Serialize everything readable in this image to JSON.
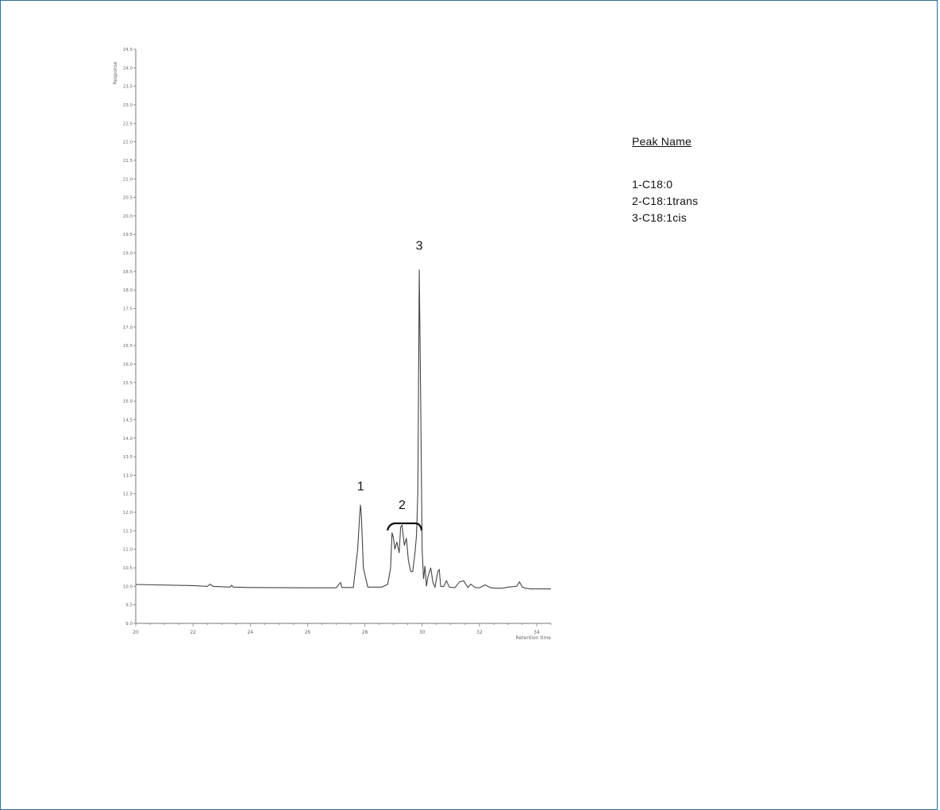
{
  "chart_data": {
    "type": "line",
    "title": "",
    "xlabel": "Retention time",
    "ylabel": "Response",
    "xlim": [
      20,
      34.5
    ],
    "ylim": [
      9.0,
      24.5
    ],
    "x_ticks": [
      "20",
      "22",
      "24",
      "26",
      "28",
      "30",
      "32",
      "34"
    ],
    "y_ticks": [
      "9.0",
      "9.5",
      "10.0",
      "10.5",
      "11.0",
      "11.5",
      "12.0",
      "12.5",
      "13.0",
      "13.5",
      "14.0",
      "14.5",
      "15.0",
      "15.5",
      "16.0",
      "16.5",
      "17.0",
      "17.5",
      "18.0",
      "18.5",
      "19.0",
      "19.5",
      "20.0",
      "20.5",
      "21.0",
      "21.5",
      "22.0",
      "22.5",
      "23.0",
      "23.5",
      "24.0",
      "24.5"
    ],
    "grid": false,
    "peak_labels": [
      {
        "label": "1",
        "x": 27.85,
        "y": 12.2
      },
      {
        "label": "2",
        "x": 29.3,
        "y": 11.7
      },
      {
        "label": "3",
        "x": 29.9,
        "y": 18.7
      }
    ],
    "series": [
      {
        "x": [
          20,
          22,
          22.5,
          22.6,
          22.7,
          23,
          23.3,
          23.35,
          23.4,
          24,
          26,
          27.0,
          27.1,
          27.15,
          27.2,
          27.6,
          27.75,
          27.82,
          27.85,
          27.88,
          27.95,
          28.1,
          28.6,
          28.8,
          28.9,
          28.95,
          29.0,
          29.05,
          29.12,
          29.2,
          29.25,
          29.3,
          29.38,
          29.45,
          29.52,
          29.6,
          29.67,
          29.75,
          29.8,
          29.85,
          29.9,
          29.95,
          30.0,
          30.05,
          30.1,
          30.15,
          30.2,
          30.3,
          30.38,
          30.45,
          30.55,
          30.6,
          30.65,
          30.75,
          30.85,
          30.95,
          31.05,
          31.15,
          31.3,
          31.45,
          31.6,
          31.7,
          31.85,
          32.0,
          32.2,
          32.4,
          32.6,
          32.7,
          32.8,
          33.0,
          33.3,
          33.4,
          33.5,
          33.6,
          33.8,
          34.5
        ],
        "values": [
          10.05,
          10.02,
          10.0,
          10.06,
          10.0,
          9.99,
          9.98,
          10.03,
          9.98,
          9.97,
          9.96,
          9.96,
          10.06,
          10.1,
          9.97,
          9.97,
          11.0,
          11.95,
          12.2,
          11.9,
          10.5,
          9.98,
          9.98,
          10.06,
          10.5,
          11.45,
          11.3,
          11.0,
          11.2,
          10.9,
          11.6,
          11.65,
          11.1,
          11.3,
          10.7,
          10.4,
          10.4,
          10.9,
          11.35,
          12.5,
          18.55,
          15.0,
          11.0,
          10.2,
          10.55,
          10.0,
          10.25,
          10.5,
          10.1,
          9.98,
          10.4,
          10.45,
          10.0,
          9.99,
          10.15,
          9.98,
          9.97,
          9.97,
          10.12,
          10.15,
          9.97,
          10.06,
          9.97,
          9.96,
          10.04,
          9.96,
          9.95,
          9.95,
          9.95,
          9.98,
          10.0,
          10.12,
          9.98,
          9.95,
          9.93,
          9.93
        ]
      }
    ]
  },
  "legend": {
    "title": "Peak Name",
    "items": [
      "1-C18:0",
      "2-C18:1trans",
      "3-C18:1cis"
    ]
  }
}
